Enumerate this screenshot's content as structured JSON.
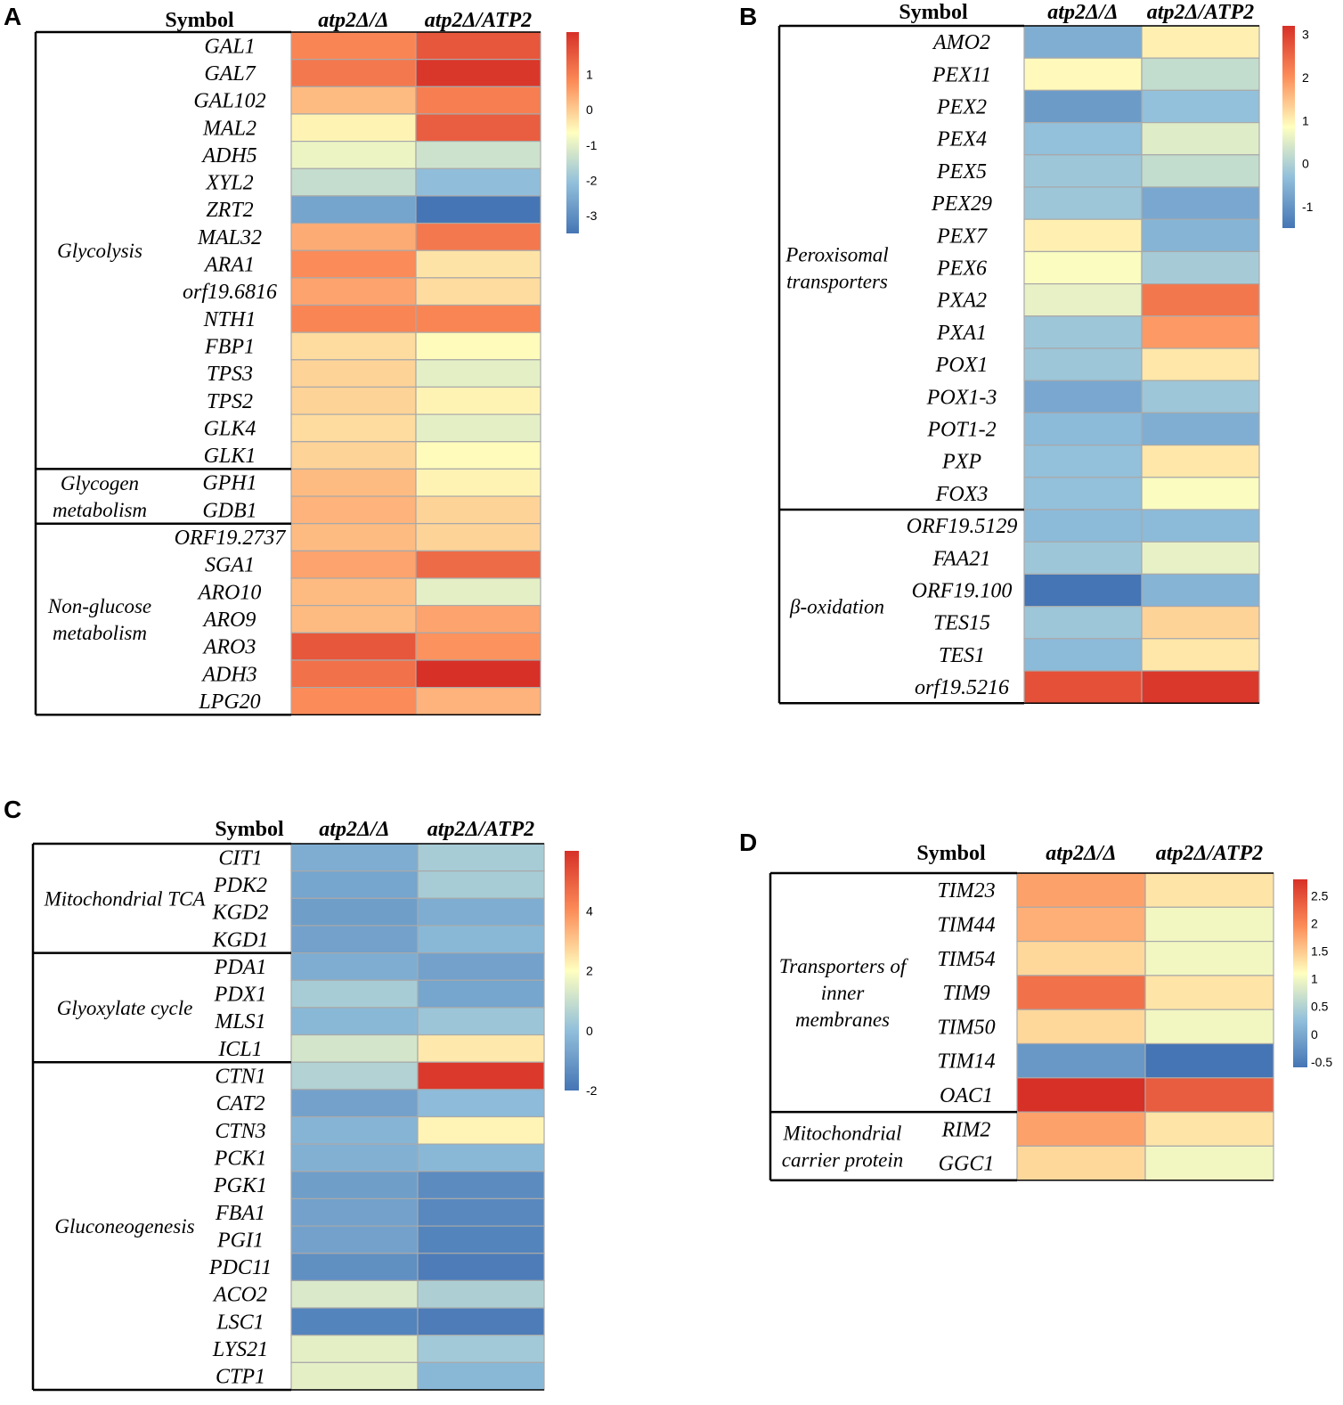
{
  "chart_data": [
    {
      "type": "heatmap",
      "panel": "A",
      "symbol_header": "Symbol",
      "columns": [
        "atp2Δ/Δ",
        "atp2Δ/ATP2"
      ],
      "colorscale": {
        "low": "#4575b4",
        "mid": "#ffffbf",
        "high": "#d73027",
        "vmin": -3.5,
        "vmax": 2.2,
        "ticks": [
          1,
          0,
          -1,
          -2,
          -3
        ]
      },
      "groups": [
        {
          "name": "Glycolysis",
          "rows": [
            {
              "gene": "GAL1",
              "values": [
                0.9,
                1.6
              ]
            },
            {
              "gene": "GAL7",
              "values": [
                1.1,
                2.1
              ]
            },
            {
              "gene": "GAL102",
              "values": [
                0.2,
                1.0
              ]
            },
            {
              "gene": "MAL2",
              "values": [
                -0.5,
                1.5
              ]
            },
            {
              "gene": "ADH5",
              "values": [
                -0.9,
                -1.3
              ]
            },
            {
              "gene": "XYL2",
              "values": [
                -1.4,
                -2.1
              ]
            },
            {
              "gene": "ZRT2",
              "values": [
                -2.6,
                -3.5
              ]
            },
            {
              "gene": "MAL32",
              "values": [
                0.4,
                1.1
              ]
            },
            {
              "gene": "ARA1",
              "values": [
                0.8,
                -0.3
              ]
            },
            {
              "gene": "orf19.6816",
              "values": [
                0.5,
                -0.2
              ]
            },
            {
              "gene": "NTH1",
              "values": [
                0.9,
                0.9
              ]
            },
            {
              "gene": "FBP1",
              "values": [
                -0.2,
                -0.6
              ]
            },
            {
              "gene": "TPS3",
              "values": [
                -0.1,
                -1.0
              ]
            },
            {
              "gene": "TPS2",
              "values": [
                -0.1,
                -0.5
              ]
            },
            {
              "gene": "GLK4",
              "values": [
                -0.2,
                -1.0
              ]
            },
            {
              "gene": "GLK1",
              "values": [
                -0.1,
                -0.6
              ]
            }
          ]
        },
        {
          "name": "Glycogen metabolism",
          "rows": [
            {
              "gene": "GPH1",
              "values": [
                0.2,
                -0.5
              ]
            },
            {
              "gene": "GDB1",
              "values": [
                0.3,
                -0.1
              ]
            }
          ]
        },
        {
          "name": "Non-glucose metabolism",
          "rows": [
            {
              "gene": "ORF19.2737",
              "values": [
                0.2,
                -0.1
              ]
            },
            {
              "gene": "SGA1",
              "values": [
                0.5,
                1.3
              ]
            },
            {
              "gene": "ARO10",
              "values": [
                0.2,
                -1.0
              ]
            },
            {
              "gene": "ARO9",
              "values": [
                0.2,
                0.5
              ]
            },
            {
              "gene": "ARO3",
              "values": [
                1.6,
                0.7
              ]
            },
            {
              "gene": "ADH3",
              "values": [
                1.2,
                2.2
              ]
            },
            {
              "gene": "LPG20",
              "values": [
                0.8,
                0.3
              ]
            }
          ]
        }
      ]
    },
    {
      "type": "heatmap",
      "panel": "B",
      "symbol_header": "Symbol",
      "columns": [
        "atp2Δ/Δ",
        "atp2Δ/ATP2"
      ],
      "colorscale": {
        "low": "#4575b4",
        "mid": "#ffffbf",
        "high": "#d73027",
        "vmin": -1.5,
        "vmax": 3.2,
        "ticks": [
          3,
          2,
          1,
          0,
          -1
        ]
      },
      "groups": [
        {
          "name": "Peroxisomal transporters",
          "rows": [
            {
              "gene": "AMO2",
              "values": [
                -0.6,
                1.0
              ]
            },
            {
              "gene": "PEX11",
              "values": [
                0.9,
                0.2
              ]
            },
            {
              "gene": "PEX2",
              "values": [
                -0.9,
                -0.3
              ]
            },
            {
              "gene": "PEX4",
              "values": [
                -0.3,
                0.5
              ]
            },
            {
              "gene": "PEX5",
              "values": [
                -0.2,
                0.2
              ]
            },
            {
              "gene": "PEX29",
              "values": [
                -0.2,
                -0.7
              ]
            },
            {
              "gene": "PEX7",
              "values": [
                1.0,
                -0.5
              ]
            },
            {
              "gene": "PEX6",
              "values": [
                0.8,
                -0.1
              ]
            },
            {
              "gene": "PXA2",
              "values": [
                0.6,
                2.3
              ]
            },
            {
              "gene": "PXA1",
              "values": [
                -0.2,
                1.9
              ]
            },
            {
              "gene": "POX1",
              "values": [
                -0.2,
                1.1
              ]
            },
            {
              "gene": "POX1-3",
              "values": [
                -0.7,
                -0.2
              ]
            },
            {
              "gene": "POT1-2",
              "values": [
                -0.4,
                -0.6
              ]
            },
            {
              "gene": "PXP",
              "values": [
                -0.3,
                1.1
              ]
            },
            {
              "gene": "FOX3",
              "values": [
                -0.3,
                0.8
              ]
            }
          ]
        },
        {
          "name": "β-oxidation",
          "rows": [
            {
              "gene": "ORF19.5129",
              "values": [
                -0.4,
                -0.4
              ]
            },
            {
              "gene": "FAA21",
              "values": [
                -0.2,
                0.6
              ]
            },
            {
              "gene": "ORF19.100",
              "values": [
                -1.5,
                -0.5
              ]
            },
            {
              "gene": "TES15",
              "values": [
                -0.2,
                1.3
              ]
            },
            {
              "gene": "TES1",
              "values": [
                -0.4,
                1.1
              ]
            },
            {
              "gene": "orf19.5216",
              "values": [
                2.8,
                3.1
              ]
            }
          ]
        }
      ]
    },
    {
      "type": "heatmap",
      "panel": "C",
      "symbol_header": "Symbol",
      "columns": [
        "atp2Δ/Δ",
        "atp2Δ/ATP2"
      ],
      "colorscale": {
        "low": "#4575b4",
        "mid": "#ffffbf",
        "high": "#d73027",
        "vmin": -2.0,
        "vmax": 6.0,
        "ticks": [
          4,
          2,
          0,
          -2
        ]
      },
      "groups": [
        {
          "name": "Mitochondrial TCA",
          "rows": [
            {
              "gene": "CIT1",
              "values": [
                -0.5,
                0.4
              ]
            },
            {
              "gene": "PDK2",
              "values": [
                -0.7,
                0.4
              ]
            },
            {
              "gene": "KGD2",
              "values": [
                -0.9,
                -0.5
              ]
            },
            {
              "gene": "KGD1",
              "values": [
                -0.8,
                -0.2
              ]
            }
          ]
        },
        {
          "name": "Glyoxylate cycle",
          "rows": [
            {
              "gene": "PDA1",
              "values": [
                -0.5,
                -0.8
              ]
            },
            {
              "gene": "PDX1",
              "values": [
                0.4,
                -0.7
              ]
            },
            {
              "gene": "MLS1",
              "values": [
                -0.2,
                0.2
              ]
            },
            {
              "gene": "ICL1",
              "values": [
                1.2,
                2.4
              ]
            }
          ]
        },
        {
          "name": "Gluconeogenesis",
          "rows": [
            {
              "gene": "CTN1",
              "values": [
                0.6,
                5.8
              ]
            },
            {
              "gene": "CAT2",
              "values": [
                -0.8,
                -0.1
              ]
            },
            {
              "gene": "CTN3",
              "values": [
                -0.3,
                2.2
              ]
            },
            {
              "gene": "PCK1",
              "values": [
                -0.4,
                -0.2
              ]
            },
            {
              "gene": "PGK1",
              "values": [
                -0.9,
                -1.4
              ]
            },
            {
              "gene": "FBA1",
              "values": [
                -0.8,
                -1.5
              ]
            },
            {
              "gene": "PGI1",
              "values": [
                -0.8,
                -1.6
              ]
            },
            {
              "gene": "PDC11",
              "values": [
                -1.3,
                -1.8
              ]
            },
            {
              "gene": "ACO2",
              "values": [
                1.3,
                0.5
              ]
            },
            {
              "gene": "LSC1",
              "values": [
                -1.6,
                -1.8
              ]
            },
            {
              "gene": "LYS21",
              "values": [
                1.5,
                0.3
              ]
            },
            {
              "gene": "CTP1",
              "values": [
                1.5,
                -0.2
              ]
            }
          ]
        }
      ]
    },
    {
      "type": "heatmap",
      "panel": "D",
      "symbol_header": "Symbol",
      "columns": [
        "atp2Δ/Δ",
        "atp2Δ/ATP2"
      ],
      "colorscale": {
        "low": "#4575b4",
        "mid": "#ffffbf",
        "high": "#d73027",
        "vmin": -0.6,
        "vmax": 2.8,
        "ticks": [
          "2.5",
          "2",
          "1.5",
          "1",
          "0.5",
          "0",
          "-0.5"
        ]
      },
      "groups": [
        {
          "name": "Transporters of inner membranes",
          "rows": [
            {
              "gene": "TIM23",
              "values": [
                1.8,
                1.3
              ]
            },
            {
              "gene": "TIM44",
              "values": [
                1.7,
                1.0
              ]
            },
            {
              "gene": "TIM54",
              "values": [
                1.4,
                1.0
              ]
            },
            {
              "gene": "TIM9",
              "values": [
                2.2,
                1.3
              ]
            },
            {
              "gene": "TIM50",
              "values": [
                1.4,
                1.0
              ]
            },
            {
              "gene": "TIM14",
              "values": [
                -0.2,
                -0.6
              ]
            },
            {
              "gene": "OAC1",
              "values": [
                2.8,
                2.4
              ]
            }
          ]
        },
        {
          "name": "Mitochondrial carrier protein",
          "rows": [
            {
              "gene": "RIM2",
              "values": [
                1.8,
                1.3
              ]
            },
            {
              "gene": "GGC1",
              "values": [
                1.4,
                1.0
              ]
            }
          ]
        }
      ]
    }
  ]
}
